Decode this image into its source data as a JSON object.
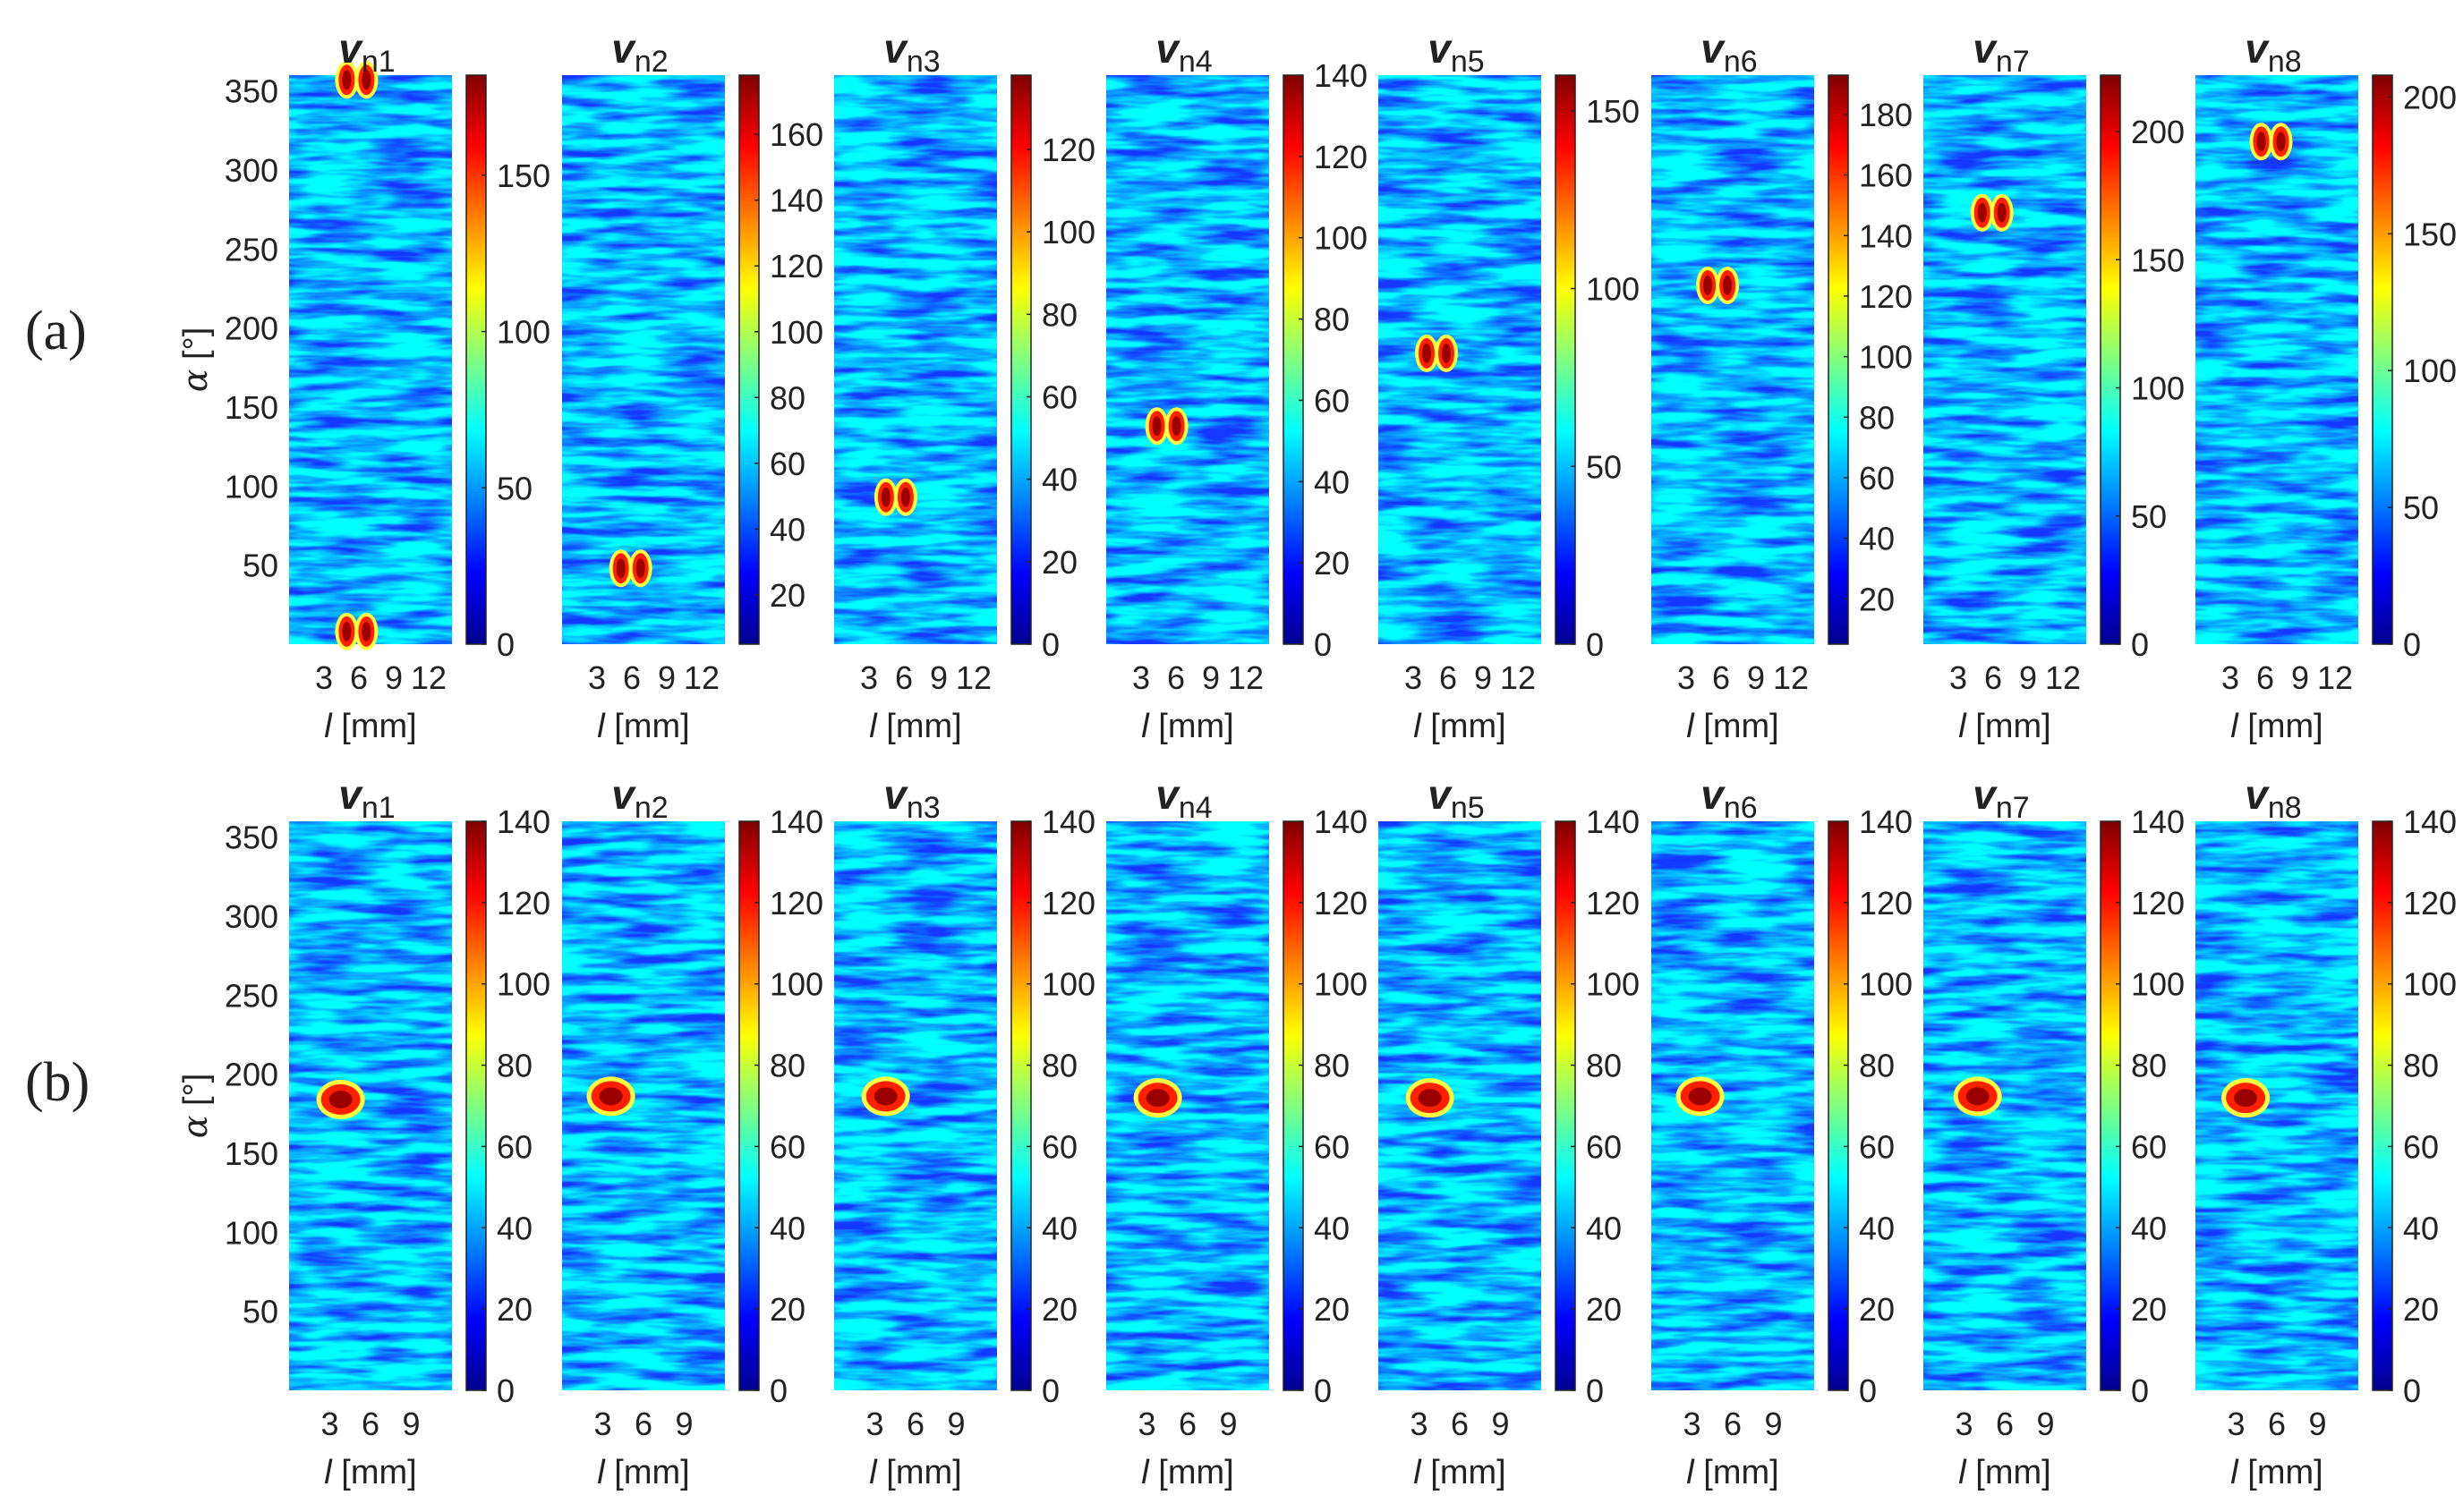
{
  "figure": {
    "row_labels": [
      "(a)",
      "(b)"
    ],
    "panel_titles": [
      {
        "main": "v",
        "sub": "n1"
      },
      {
        "main": "v",
        "sub": "n2"
      },
      {
        "main": "v",
        "sub": "n3"
      },
      {
        "main": "v",
        "sub": "n4"
      },
      {
        "main": "v",
        "sub": "n5"
      },
      {
        "main": "v",
        "sub": "n6"
      },
      {
        "main": "v",
        "sub": "n7"
      },
      {
        "main": "v",
        "sub": "n8"
      }
    ],
    "xlabel": {
      "var": "l",
      "unit": " [mm]"
    },
    "ylabel": {
      "var": "α",
      "unit": " [°]"
    },
    "colormap": [
      "#00008f",
      "#0000ff",
      "#0080ff",
      "#00ffff",
      "#80ff80",
      "#ffff00",
      "#ff8000",
      "#ff0000",
      "#800000"
    ]
  },
  "chart_data": [
    {
      "type": "heatmap",
      "row": "a",
      "ylim": [
        0,
        360
      ],
      "yticks": [
        50,
        100,
        150,
        200,
        250,
        300,
        350
      ],
      "xlim": [
        0,
        14
      ],
      "xticks": [
        3,
        6,
        9,
        12
      ],
      "panels": [
        {
          "title_sub": "n1",
          "clim": [
            0,
            182
          ],
          "cticks": [
            0,
            50,
            100,
            150
          ],
          "hotspots": [
            [
              5.8,
              357
            ],
            [
              5.8,
              8
            ]
          ]
        },
        {
          "title_sub": "n2",
          "clim": [
            5,
            178
          ],
          "cticks": [
            20,
            40,
            60,
            80,
            100,
            120,
            140,
            160
          ],
          "hotspots": [
            [
              5.9,
              48
            ]
          ]
        },
        {
          "title_sub": "n3",
          "clim": [
            0,
            138
          ],
          "cticks": [
            0,
            20,
            40,
            60,
            80,
            100,
            120
          ],
          "hotspots": [
            [
              5.3,
              93
            ]
          ]
        },
        {
          "title_sub": "n4",
          "clim": [
            0,
            140
          ],
          "cticks": [
            0,
            20,
            40,
            60,
            80,
            100,
            120,
            140
          ],
          "hotspots": [
            [
              5.2,
              138
            ]
          ]
        },
        {
          "title_sub": "n5",
          "clim": [
            0,
            160
          ],
          "cticks": [
            0,
            50,
            100,
            150
          ],
          "hotspots": [
            [
              5.0,
              184
            ]
          ]
        },
        {
          "title_sub": "n6",
          "clim": [
            5,
            193
          ],
          "cticks": [
            20,
            40,
            60,
            80,
            100,
            120,
            140,
            160,
            180
          ],
          "hotspots": [
            [
              5.7,
              227
            ]
          ]
        },
        {
          "title_sub": "n7",
          "clim": [
            0,
            222
          ],
          "cticks": [
            0,
            50,
            100,
            150,
            200
          ],
          "hotspots": [
            [
              5.9,
              273
            ]
          ]
        },
        {
          "title_sub": "n8",
          "clim": [
            0,
            208
          ],
          "cticks": [
            0,
            50,
            100,
            150,
            200
          ],
          "hotspots": [
            [
              6.5,
              318
            ]
          ]
        }
      ]
    },
    {
      "type": "heatmap",
      "row": "b",
      "ylim": [
        0,
        360
      ],
      "yticks": [
        50,
        100,
        150,
        200,
        250,
        300,
        350
      ],
      "xlim": [
        0,
        12
      ],
      "xticks": [
        3,
        6,
        9
      ],
      "panels": [
        {
          "title_sub": "n1",
          "clim": [
            0,
            140
          ],
          "cticks": [
            0,
            20,
            40,
            60,
            80,
            100,
            120,
            140
          ],
          "hotspots": [
            [
              3.8,
              184
            ]
          ]
        },
        {
          "title_sub": "n2",
          "clim": [
            0,
            140
          ],
          "cticks": [
            0,
            20,
            40,
            60,
            80,
            100,
            120,
            140
          ],
          "hotspots": [
            [
              3.6,
              186
            ]
          ]
        },
        {
          "title_sub": "n3",
          "clim": [
            0,
            140
          ],
          "cticks": [
            0,
            20,
            40,
            60,
            80,
            100,
            120,
            140
          ],
          "hotspots": [
            [
              3.8,
              186
            ]
          ]
        },
        {
          "title_sub": "n4",
          "clim": [
            0,
            140
          ],
          "cticks": [
            0,
            20,
            40,
            60,
            80,
            100,
            120,
            140
          ],
          "hotspots": [
            [
              3.8,
              185
            ]
          ]
        },
        {
          "title_sub": "n5",
          "clim": [
            0,
            140
          ],
          "cticks": [
            0,
            20,
            40,
            60,
            80,
            100,
            120,
            140
          ],
          "hotspots": [
            [
              3.8,
              185
            ]
          ]
        },
        {
          "title_sub": "n6",
          "clim": [
            0,
            140
          ],
          "cticks": [
            0,
            20,
            40,
            60,
            80,
            100,
            120,
            140
          ],
          "hotspots": [
            [
              3.6,
              186
            ]
          ]
        },
        {
          "title_sub": "n7",
          "clim": [
            0,
            140
          ],
          "cticks": [
            0,
            20,
            40,
            60,
            80,
            100,
            120,
            140
          ],
          "hotspots": [
            [
              4.0,
              186
            ]
          ]
        },
        {
          "title_sub": "n8",
          "clim": [
            0,
            140
          ],
          "cticks": [
            0,
            20,
            40,
            60,
            80,
            100,
            120,
            140
          ],
          "hotspots": [
            [
              3.7,
              185
            ]
          ]
        }
      ]
    }
  ]
}
